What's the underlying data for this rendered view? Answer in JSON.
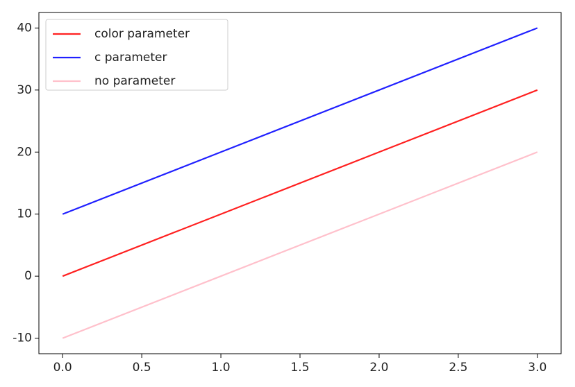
{
  "chart_data": {
    "type": "line",
    "x": [
      0,
      1,
      2,
      3
    ],
    "series": [
      {
        "name": "color parameter",
        "color": "#ff2020",
        "values": [
          0,
          10,
          20,
          30
        ]
      },
      {
        "name": "c parameter",
        "color": "#2020ff",
        "values": [
          10,
          20,
          30,
          40
        ]
      },
      {
        "name": "no parameter",
        "color": "#ffc0cb",
        "values": [
          -10,
          0,
          10,
          20
        ]
      }
    ],
    "xlim": [
      -0.15,
      3.15
    ],
    "ylim": [
      -12.5,
      42.5
    ],
    "xticks": [
      {
        "value": 0,
        "label": "0.0"
      },
      {
        "value": 0.5,
        "label": "0.5"
      },
      {
        "value": 1,
        "label": "1.0"
      },
      {
        "value": 1.5,
        "label": "1.5"
      },
      {
        "value": 2,
        "label": "2.0"
      },
      {
        "value": 2.5,
        "label": "2.5"
      },
      {
        "value": 3,
        "label": "3.0"
      }
    ],
    "yticks": [
      -10,
      0,
      10,
      20,
      30,
      40
    ],
    "legend": "upper left"
  }
}
